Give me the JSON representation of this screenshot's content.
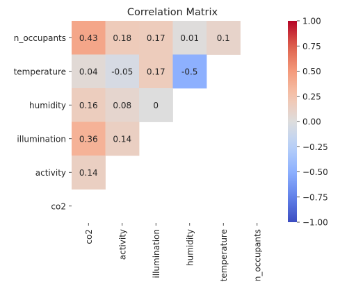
{
  "chart_data": {
    "type": "heatmap",
    "title": "Correlation Matrix",
    "xlabel": "",
    "ylabel": "",
    "x_labels": [
      "co2",
      "activity",
      "illumination",
      "humidity",
      "temperature",
      "n_occupants"
    ],
    "y_labels": [
      "n_occupants",
      "temperature",
      "humidity",
      "illumination",
      "activity",
      "co2"
    ],
    "values": [
      [
        0.43,
        0.18,
        0.17,
        0.01,
        0.1,
        null
      ],
      [
        0.04,
        -0.05,
        0.17,
        -0.5,
        null,
        null
      ],
      [
        0.16,
        0.08,
        0,
        null,
        null,
        null
      ],
      [
        0.36,
        0.14,
        null,
        null,
        null,
        null
      ],
      [
        0.14,
        null,
        null,
        null,
        null,
        null
      ],
      [
        null,
        null,
        null,
        null,
        null,
        null
      ]
    ],
    "value_labels": [
      [
        "0.43",
        "0.18",
        "0.17",
        "0.01",
        "0.1",
        ""
      ],
      [
        "0.04",
        "-0.05",
        "0.17",
        "-0.5",
        "",
        ""
      ],
      [
        "0.16",
        "0.08",
        "0",
        "",
        "",
        ""
      ],
      [
        "0.36",
        "0.14",
        "",
        "",
        "",
        ""
      ],
      [
        "0.14",
        "",
        "",
        "",
        "",
        ""
      ],
      [
        "",
        "",
        "",
        "",
        "",
        ""
      ]
    ],
    "colormap": "coolwarm",
    "vmin": -1.0,
    "vmax": 1.0,
    "colorbar": {
      "ticks": [
        1.0,
        0.75,
        0.5,
        0.25,
        0.0,
        -0.25,
        -0.5,
        -0.75,
        -1.0
      ],
      "tick_labels": [
        "1.00",
        "0.75",
        "0.50",
        "0.25",
        "0.00",
        "−0.25",
        "−0.50",
        "−0.75",
        "−1.00"
      ],
      "placement": "right"
    },
    "grid": false
  }
}
